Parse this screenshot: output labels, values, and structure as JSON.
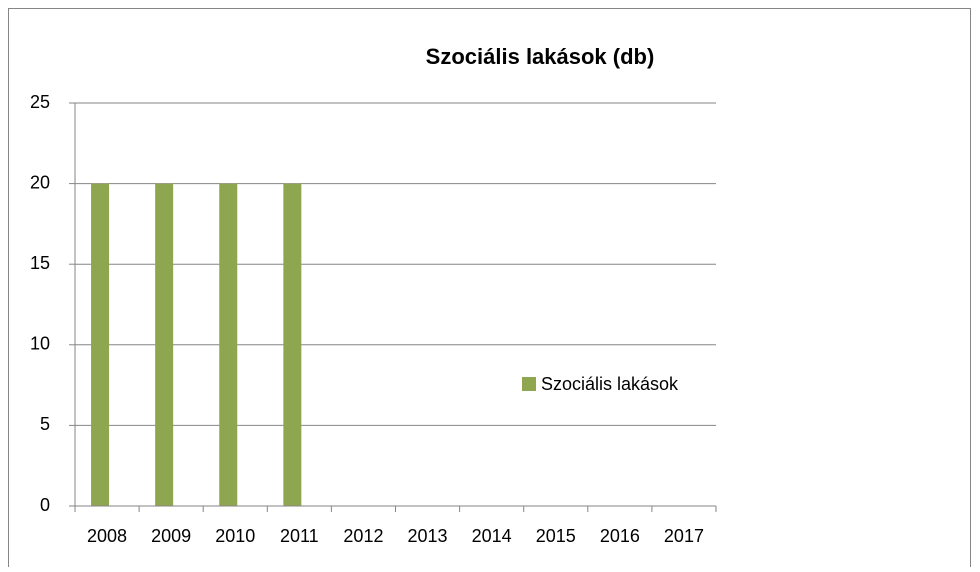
{
  "chart_data": {
    "type": "bar",
    "title": "Szociális lakások (db)",
    "categories": [
      "2008",
      "2009",
      "2010",
      "2011",
      "2012",
      "2013",
      "2014",
      "2015",
      "2016",
      "2017"
    ],
    "series": [
      {
        "name": "Szociális lakások",
        "color": "#8ea64f",
        "values": [
          20,
          20,
          20,
          20,
          0,
          0,
          0,
          0,
          0,
          0
        ]
      }
    ],
    "ylim": [
      0,
      25
    ],
    "yticks": [
      0,
      5,
      10,
      15,
      20,
      25
    ],
    "grid": true,
    "legend": "right"
  }
}
